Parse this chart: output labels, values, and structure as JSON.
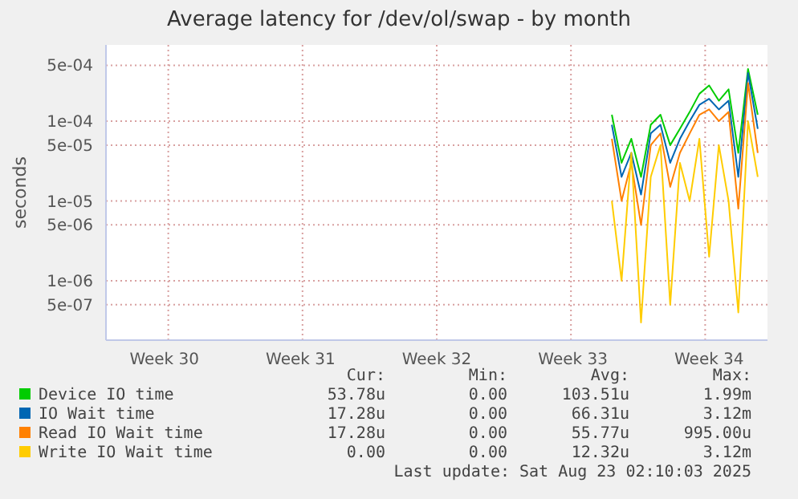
{
  "chart_data": {
    "type": "line",
    "title": "Average latency for /dev/ol/swap - by month",
    "ylabel": "seconds",
    "log": "y",
    "grid": true,
    "legend": "bottom",
    "marker": "none",
    "categories": [
      null,
      null,
      null,
      null,
      null,
      null,
      "Week 30",
      null,
      null,
      null,
      null,
      null,
      null,
      null,
      null,
      null,
      null,
      null,
      null,
      null,
      "Week 31",
      null,
      null,
      null,
      null,
      null,
      null,
      null,
      null,
      null,
      null,
      null,
      null,
      null,
      "Week 32",
      null,
      null,
      null,
      null,
      null,
      null,
      null,
      null,
      null,
      null,
      null,
      null,
      null,
      "Week 33",
      null,
      null,
      null,
      null,
      null,
      null,
      null,
      null,
      null,
      null,
      null,
      null,
      null,
      "Week 34",
      null,
      null,
      null,
      null,
      null,
      null
    ],
    "ylim": [
      1.8e-07,
      0.0009
    ],
    "yticks": [
      {
        "value": 5e-07,
        "label": "5e-07"
      },
      {
        "value": 1e-06,
        "label": "1e-06"
      },
      {
        "value": 5e-06,
        "label": "5e-06"
      },
      {
        "value": 1e-05,
        "label": "1e-05"
      },
      {
        "value": 5e-05,
        "label": "5e-05"
      },
      {
        "value": 0.0001,
        "label": "1e-04"
      },
      {
        "value": 0.0005,
        "label": "5e-04"
      }
    ],
    "series": [
      {
        "name": "Device IO time",
        "color": "#00cc00",
        "values": [
          null,
          null,
          null,
          null,
          null,
          null,
          null,
          null,
          null,
          null,
          null,
          null,
          null,
          null,
          null,
          null,
          null,
          null,
          null,
          null,
          null,
          null,
          null,
          null,
          null,
          null,
          null,
          null,
          null,
          null,
          null,
          null,
          null,
          null,
          null,
          null,
          null,
          null,
          null,
          null,
          null,
          null,
          null,
          null,
          null,
          null,
          null,
          null,
          null,
          null,
          null,
          null,
          0.00012,
          3e-05,
          6e-05,
          2e-05,
          9e-05,
          0.00012,
          5e-05,
          8e-05,
          0.00013,
          0.00022,
          0.00028,
          0.00018,
          0.00025,
          4e-05,
          0.00045,
          0.00012,
          null
        ]
      },
      {
        "name": "IO Wait time",
        "color": "#0066b3",
        "values": [
          null,
          null,
          null,
          null,
          null,
          null,
          null,
          null,
          null,
          null,
          null,
          null,
          null,
          null,
          null,
          null,
          null,
          null,
          null,
          null,
          null,
          null,
          null,
          null,
          null,
          null,
          null,
          null,
          null,
          null,
          null,
          null,
          null,
          null,
          null,
          null,
          null,
          null,
          null,
          null,
          null,
          null,
          null,
          null,
          null,
          null,
          null,
          null,
          null,
          null,
          null,
          null,
          9e-05,
          2e-05,
          4e-05,
          1.2e-05,
          7e-05,
          9e-05,
          3e-05,
          6e-05,
          0.0001,
          0.00016,
          0.00019,
          0.00014,
          0.00018,
          2e-05,
          0.0004,
          8e-05,
          null
        ]
      },
      {
        "name": "Read IO Wait time",
        "color": "#ff8000",
        "values": [
          null,
          null,
          null,
          null,
          null,
          null,
          null,
          null,
          null,
          null,
          null,
          null,
          null,
          null,
          null,
          null,
          null,
          null,
          null,
          null,
          null,
          null,
          null,
          null,
          null,
          null,
          null,
          null,
          null,
          null,
          null,
          null,
          null,
          null,
          null,
          null,
          null,
          null,
          null,
          null,
          null,
          null,
          null,
          null,
          null,
          null,
          null,
          null,
          null,
          null,
          null,
          null,
          6e-05,
          1e-05,
          3e-05,
          5e-06,
          5e-05,
          7e-05,
          1.5e-05,
          4e-05,
          7e-05,
          0.00012,
          0.00014,
          0.0001,
          0.00013,
          8e-06,
          0.0003,
          4e-05,
          null
        ]
      },
      {
        "name": "Write IO Wait time",
        "color": "#ffcc00",
        "values": [
          null,
          null,
          null,
          null,
          null,
          null,
          null,
          null,
          null,
          null,
          null,
          null,
          null,
          null,
          null,
          null,
          null,
          null,
          null,
          null,
          null,
          null,
          null,
          null,
          null,
          null,
          null,
          null,
          null,
          null,
          null,
          null,
          null,
          null,
          null,
          null,
          null,
          null,
          null,
          null,
          null,
          null,
          null,
          null,
          null,
          null,
          null,
          null,
          null,
          null,
          null,
          null,
          1e-05,
          1e-06,
          4e-05,
          3e-07,
          2e-05,
          5e-05,
          5e-07,
          3e-05,
          1e-05,
          6e-05,
          2e-06,
          5e-05,
          1e-05,
          4e-07,
          0.0001,
          2e-05,
          null
        ]
      }
    ],
    "annotations": [
      "Cur:",
      "Min:",
      "Avg:",
      "Max:",
      "53.78u",
      "0.00",
      "103.51u",
      "1.99m",
      "17.28u",
      "0.00",
      "66.31u",
      "3.12m",
      "17.28u",
      "0.00",
      "55.77u",
      "995.00u",
      "0.00",
      "0.00",
      "12.32u",
      "3.12m",
      "Last update: Sat Aug 23 02:10:03 2025"
    ]
  }
}
